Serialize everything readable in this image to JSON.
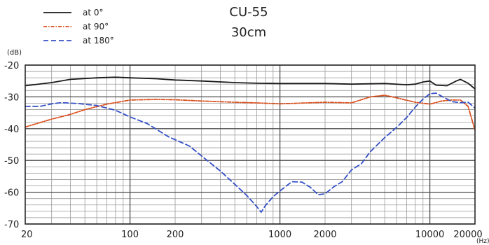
{
  "chart_data": {
    "type": "line",
    "title": "CU-55",
    "subtitle": "30cm",
    "ylabel": "(dB)",
    "xunit": "(Hz)",
    "xscale": "log",
    "xlim": [
      20,
      20000
    ],
    "ylim": [
      -70,
      -20
    ],
    "grid": true,
    "legend_position": "top-left",
    "xticks": [
      {
        "value": 20,
        "label": "20"
      },
      {
        "value": 100,
        "label": "100"
      },
      {
        "value": 200,
        "label": "200"
      },
      {
        "value": 1000,
        "label": "1000"
      },
      {
        "value": 2000,
        "label": "2000"
      },
      {
        "value": 10000,
        "label": "10000"
      },
      {
        "value": 20000,
        "label": "20000"
      }
    ],
    "yticks": [
      {
        "value": -20,
        "label": "-20"
      },
      {
        "value": -30,
        "label": "-30"
      },
      {
        "value": -40,
        "label": "-40"
      },
      {
        "value": -50,
        "label": "-50"
      },
      {
        "value": -60,
        "label": "-60"
      },
      {
        "value": -70,
        "label": "-70"
      }
    ],
    "series": [
      {
        "name": "at 0°",
        "color": "#1a1a1a",
        "dash": "solid",
        "points": [
          [
            20,
            -26.5
          ],
          [
            30,
            -25.5
          ],
          [
            40,
            -24.5
          ],
          [
            60,
            -24
          ],
          [
            80,
            -23.8
          ],
          [
            100,
            -24
          ],
          [
            150,
            -24.3
          ],
          [
            200,
            -24.7
          ],
          [
            300,
            -25
          ],
          [
            500,
            -25.5
          ],
          [
            700,
            -25.7
          ],
          [
            1000,
            -25.8
          ],
          [
            1500,
            -25.8
          ],
          [
            2000,
            -25.8
          ],
          [
            3000,
            -26
          ],
          [
            5000,
            -25.8
          ],
          [
            7000,
            -26.2
          ],
          [
            8000,
            -26
          ],
          [
            9000,
            -25.3
          ],
          [
            10000,
            -25
          ],
          [
            11000,
            -26.3
          ],
          [
            13000,
            -26.5
          ],
          [
            15000,
            -25
          ],
          [
            16000,
            -24.5
          ],
          [
            18000,
            -25.7
          ],
          [
            20000,
            -27.5
          ]
        ]
      },
      {
        "name": "at 90°",
        "color": "#d9501e",
        "dash": "dashdot",
        "points": [
          [
            20,
            -39.5
          ],
          [
            30,
            -37
          ],
          [
            40,
            -35.5
          ],
          [
            50,
            -34
          ],
          [
            70,
            -32.3
          ],
          [
            100,
            -31
          ],
          [
            150,
            -30.8
          ],
          [
            200,
            -30.9
          ],
          [
            300,
            -31.3
          ],
          [
            500,
            -31.7
          ],
          [
            700,
            -31.9
          ],
          [
            1000,
            -32.2
          ],
          [
            1500,
            -31.9
          ],
          [
            2000,
            -31.7
          ],
          [
            3000,
            -31.9
          ],
          [
            4000,
            -30
          ],
          [
            5000,
            -29.5
          ],
          [
            6000,
            -30.3
          ],
          [
            8000,
            -31.7
          ],
          [
            10000,
            -32.3
          ],
          [
            12000,
            -31.3
          ],
          [
            14000,
            -31
          ],
          [
            16000,
            -31
          ],
          [
            18000,
            -33
          ],
          [
            20000,
            -40.5
          ]
        ]
      },
      {
        "name": "at 180°",
        "color": "#3550c8",
        "dash": "dashed",
        "points": [
          [
            20,
            -33
          ],
          [
            25,
            -33
          ],
          [
            30,
            -32.2
          ],
          [
            35,
            -31.8
          ],
          [
            45,
            -32.1
          ],
          [
            60,
            -32.7
          ],
          [
            80,
            -34.2
          ],
          [
            100,
            -36.3
          ],
          [
            130,
            -38.4
          ],
          [
            180,
            -42.5
          ],
          [
            250,
            -45.5
          ],
          [
            300,
            -48.6
          ],
          [
            400,
            -53.3
          ],
          [
            500,
            -57.5
          ],
          [
            600,
            -61
          ],
          [
            700,
            -64.5
          ],
          [
            750,
            -66.3
          ],
          [
            800,
            -64.2
          ],
          [
            900,
            -61.4
          ],
          [
            1000,
            -59.6
          ],
          [
            1200,
            -56.7
          ],
          [
            1400,
            -56.8
          ],
          [
            1600,
            -58.5
          ],
          [
            1800,
            -60.8
          ],
          [
            2000,
            -60.5
          ],
          [
            2300,
            -58.2
          ],
          [
            2600,
            -56.7
          ],
          [
            3000,
            -53
          ],
          [
            3500,
            -51
          ],
          [
            4000,
            -47.3
          ],
          [
            5000,
            -42.8
          ],
          [
            6000,
            -39.6
          ],
          [
            7000,
            -36.5
          ],
          [
            8000,
            -33.2
          ],
          [
            9000,
            -30.7
          ],
          [
            10000,
            -29
          ],
          [
            11000,
            -28.8
          ],
          [
            12000,
            -29.8
          ],
          [
            14000,
            -31.5
          ],
          [
            16000,
            -31.8
          ],
          [
            18000,
            -31.7
          ],
          [
            20000,
            -33.5
          ]
        ]
      }
    ]
  }
}
